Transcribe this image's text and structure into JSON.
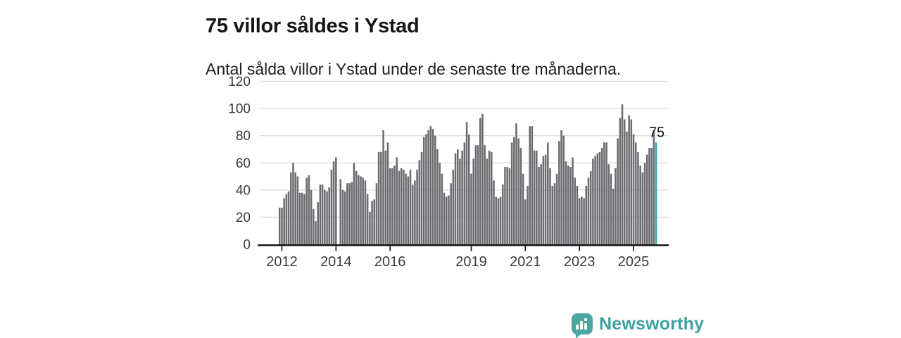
{
  "header": {
    "title": "75 villor såldes i Ystad",
    "subtitle": "Antal sålda villor i Ystad under de senaste tre månaderna."
  },
  "annotation": {
    "label": "75"
  },
  "branding": {
    "name": "Newsworthy",
    "icon": "chart-speech-bubble",
    "icon_color": "#4ba69f",
    "text_color": "#3fa29e"
  },
  "colors": {
    "background": "#ffffff",
    "bar": "#6b6b70",
    "highlight": "#2aa5a1",
    "grid": "#dcdcdc",
    "axis_line": "#111111",
    "axis_text": "#3a3a3a",
    "title_text": "#161616",
    "annotation_text": "#111111"
  },
  "chart_data": {
    "type": "bar",
    "title": "75 villor såldes i Ystad",
    "subtitle": "Antal sålda villor i Ystad under de senaste tre månaderna.",
    "x_start": "2011-12",
    "frequency": "monthly",
    "values": [
      27,
      27,
      34,
      37,
      39,
      53,
      60,
      53,
      50,
      38,
      38,
      37,
      49,
      51,
      40,
      26,
      17,
      31,
      44,
      44,
      40,
      39,
      42,
      55,
      61,
      64,
      0,
      48,
      40,
      39,
      45,
      45,
      46,
      60,
      54,
      51,
      50,
      49,
      47,
      37,
      24,
      32,
      33,
      45,
      68,
      68,
      84,
      69,
      75,
      56,
      56,
      58,
      64,
      54,
      56,
      55,
      52,
      50,
      55,
      44,
      47,
      55,
      62,
      68,
      79,
      81,
      84,
      87,
      85,
      80,
      70,
      60,
      52,
      38,
      35,
      36,
      45,
      55,
      67,
      70,
      63,
      69,
      75,
      90,
      81,
      52,
      63,
      73,
      73,
      93,
      96,
      73,
      63,
      69,
      68,
      47,
      35,
      34,
      35,
      44,
      57,
      57,
      56,
      75,
      79,
      89,
      78,
      71,
      52,
      33,
      43,
      87,
      87,
      69,
      69,
      57,
      59,
      65,
      66,
      75,
      56,
      43,
      45,
      52,
      76,
      84,
      80,
      61,
      58,
      57,
      64,
      49,
      43,
      34,
      35,
      34,
      43,
      49,
      54,
      63,
      65,
      67,
      68,
      71,
      75,
      75,
      59,
      52,
      41,
      56,
      78,
      93,
      103,
      92,
      83,
      95,
      92,
      81,
      75,
      68,
      58,
      53,
      60,
      66,
      71,
      71,
      84,
      75
    ],
    "highlight_index": 167,
    "highlight_value": 75,
    "xticks": [
      2012,
      2014,
      2016,
      2019,
      2021,
      2023,
      2025
    ],
    "yticks": [
      0,
      20,
      40,
      60,
      80,
      100,
      120
    ],
    "ylim": [
      0,
      120
    ],
    "grid": "horizontal",
    "legend": "none",
    "xlabel": "",
    "ylabel": ""
  }
}
